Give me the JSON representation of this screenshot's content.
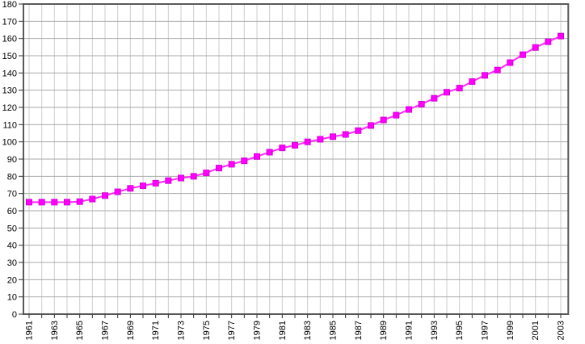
{
  "chart_data": {
    "type": "line",
    "title": "",
    "xlabel": "",
    "ylabel": "",
    "legend": "none",
    "grid": "on",
    "ylim": [
      0,
      180
    ],
    "y_tick_step": 10,
    "y_tick_labels": [
      "0",
      "10",
      "20",
      "30",
      "40",
      "50",
      "60",
      "70",
      "80",
      "90",
      "100",
      "110",
      "120",
      "130",
      "140",
      "150",
      "160",
      "170",
      "180"
    ],
    "x_tick_labels": [
      "1961",
      "1963",
      "1965",
      "1967",
      "1969",
      "1971",
      "1973",
      "1975",
      "1977",
      "1979",
      "1981",
      "1983",
      "1985",
      "1987",
      "1989",
      "1991",
      "1993",
      "1995",
      "1997",
      "1999",
      "2001",
      "2003"
    ],
    "x": [
      1961,
      1962,
      1963,
      1964,
      1965,
      1966,
      1967,
      1968,
      1969,
      1970,
      1971,
      1972,
      1973,
      1974,
      1975,
      1976,
      1977,
      1978,
      1979,
      1980,
      1981,
      1982,
      1983,
      1984,
      1985,
      1986,
      1987,
      1988,
      1989,
      1990,
      1991,
      1992,
      1993,
      1994,
      1995,
      1996,
      1997,
      1998,
      1999,
      2000,
      2001,
      2002,
      2003
    ],
    "series": [
      {
        "name": "value",
        "values": [
          65.0,
          65.0,
          65.0,
          65.0,
          65.3,
          66.8,
          68.8,
          71.0,
          73.0,
          74.5,
          76.0,
          77.5,
          79.0,
          80.0,
          82.0,
          84.8,
          87.0,
          89.0,
          91.5,
          94.0,
          96.5,
          98.0,
          100.0,
          101.5,
          103.0,
          104.3,
          106.5,
          109.5,
          112.7,
          115.5,
          118.8,
          121.9,
          125.3,
          128.8,
          131.2,
          135.0,
          138.6,
          141.7,
          146.0,
          150.6,
          154.8,
          158.1,
          161.4
        ]
      }
    ],
    "colors": {
      "line": "#ff2bff",
      "marker": "#ff00ff",
      "marker_edge": "#d900d9",
      "major_grid": "#a9a9a9",
      "minor_grid": "#cdcdcd",
      "frame": "#595959",
      "tick": "#333333",
      "text": "#000000",
      "background": "#ffffff"
    }
  }
}
